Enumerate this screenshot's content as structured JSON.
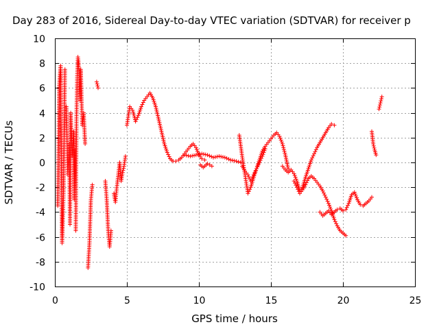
{
  "chart_data": {
    "type": "scatter",
    "title": "Day 283 of 2016, Sidereal Day-to-day VTEC variation (SDTVAR) for receiver p",
    "xlabel": "GPS time / hours",
    "ylabel": "SDTVAR / TECUs",
    "xlim": [
      0,
      25
    ],
    "ylim": [
      -10,
      10
    ],
    "xticks": [
      "0",
      "5",
      "10",
      "15",
      "20",
      "25"
    ],
    "yticks": [
      "-10",
      "-8",
      "-6",
      "-4",
      "-2",
      "0",
      "2",
      "4",
      "6",
      "8",
      "10"
    ],
    "grid": true,
    "marker": "+",
    "color": "#ff0000",
    "segments": [
      {
        "x": [
          0.2,
          0.3,
          0.4,
          0.5,
          0.6,
          0.7
        ],
        "y": [
          -3.5,
          6.2,
          7.8,
          -6.5,
          -2.5,
          7.5
        ]
      },
      {
        "x": [
          0.8,
          0.9,
          1.0,
          1.05,
          1.1,
          1.2,
          1.3,
          1.35,
          1.4
        ],
        "y": [
          4.5,
          -1.0,
          1.5,
          -5.0,
          4.0,
          0.5,
          2.5,
          -3.0,
          1.0
        ]
      },
      {
        "x": [
          1.45,
          1.5,
          1.55,
          1.6,
          1.65,
          1.7,
          1.75,
          1.8,
          1.9,
          2.0,
          2.1
        ],
        "y": [
          -5.5,
          3.5,
          7.0,
          8.5,
          8.0,
          6.0,
          5.0,
          7.5,
          3.0,
          4.0,
          1.5
        ]
      },
      {
        "x": [
          2.3,
          2.4,
          2.5,
          2.6
        ],
        "y": [
          -8.5,
          -6.5,
          -3.0,
          -1.8
        ]
      },
      {
        "x": [
          2.9,
          3.0
        ],
        "y": [
          6.5,
          6.0
        ]
      },
      {
        "x": [
          3.5,
          3.6,
          3.7,
          3.8,
          3.9
        ],
        "y": [
          -1.5,
          -3.0,
          -5.5,
          -6.8,
          -5.5
        ]
      },
      {
        "x": [
          4.1,
          4.2,
          4.3,
          4.4,
          4.5,
          4.6,
          4.7,
          4.8,
          4.9
        ],
        "y": [
          -2.5,
          -3.2,
          -2.0,
          -1.0,
          0.0,
          -1.5,
          -0.8,
          -0.3,
          0.5
        ]
      },
      {
        "x": [
          5.0,
          5.2,
          5.4,
          5.6,
          5.8,
          6.0,
          6.2,
          6.4,
          6.6,
          6.8,
          7.0,
          7.2,
          7.4,
          7.6,
          7.8,
          8.0,
          8.2,
          8.4,
          8.6,
          8.8,
          9.0,
          9.2,
          9.4,
          9.6,
          9.8,
          10.0,
          10.2,
          10.4
        ],
        "y": [
          3.0,
          4.5,
          4.2,
          3.3,
          3.8,
          4.5,
          5.0,
          5.3,
          5.6,
          5.2,
          4.5,
          3.5,
          2.5,
          1.5,
          0.8,
          0.3,
          0.1,
          0.1,
          0.2,
          0.4,
          0.7,
          1.0,
          1.3,
          1.5,
          1.2,
          0.6,
          0.3,
          0.2
        ]
      },
      {
        "x": [
          9.0,
          9.4,
          9.8,
          10.2,
          10.6,
          11.0,
          11.4,
          11.8,
          12.2,
          12.6,
          12.9
        ],
        "y": [
          0.6,
          0.5,
          0.6,
          0.7,
          0.6,
          0.4,
          0.5,
          0.4,
          0.2,
          0.1,
          0.0
        ]
      },
      {
        "x": [
          10.1,
          10.3,
          10.6,
          10.9
        ],
        "y": [
          -0.2,
          -0.4,
          -0.1,
          -0.3
        ]
      },
      {
        "x": [
          12.8,
          13.0,
          13.2,
          13.4,
          13.6,
          13.8,
          14.0,
          14.2,
          14.4,
          14.6,
          14.8,
          15.0,
          15.2,
          15.4,
          15.6,
          15.8,
          16.0,
          16.2
        ],
        "y": [
          2.2,
          0.5,
          -1.0,
          -2.5,
          -2.0,
          -1.2,
          -0.5,
          0.2,
          0.9,
          1.3,
          1.6,
          1.9,
          2.2,
          2.4,
          2.1,
          1.5,
          0.6,
          -0.5
        ]
      },
      {
        "x": [
          13.0,
          13.2,
          13.4,
          13.6,
          13.8,
          14.0,
          14.2,
          14.4,
          14.6
        ],
        "y": [
          -0.3,
          -0.7,
          -1.0,
          -1.5,
          -1.0,
          -0.5,
          0.0,
          0.5,
          1.1
        ]
      },
      {
        "x": [
          15.8,
          16.0,
          16.2,
          16.4,
          16.6,
          16.8,
          17.0,
          17.2,
          17.4,
          17.6,
          17.8,
          18.0,
          18.2,
          18.4,
          18.6,
          18.8,
          19.0,
          19.2,
          19.4
        ],
        "y": [
          -0.3,
          -0.6,
          -0.8,
          -0.6,
          -0.9,
          -1.5,
          -2.3,
          -2.0,
          -1.2,
          -0.5,
          0.2,
          0.7,
          1.2,
          1.6,
          2.0,
          2.4,
          2.8,
          3.1,
          3.0
        ]
      },
      {
        "x": [
          16.6,
          16.8,
          17.0,
          17.2,
          17.4,
          17.6,
          17.8,
          18.0,
          18.2,
          18.4,
          18.6,
          18.8,
          19.0,
          19.2,
          19.4,
          19.6,
          19.8,
          20.0,
          20.2
        ],
        "y": [
          -1.5,
          -2.0,
          -2.5,
          -2.2,
          -1.8,
          -1.3,
          -1.1,
          -1.3,
          -1.6,
          -1.9,
          -2.3,
          -2.8,
          -3.3,
          -3.9,
          -4.6,
          -5.1,
          -5.5,
          -5.7,
          -5.9
        ]
      },
      {
        "x": [
          18.4,
          18.6,
          18.8,
          19.0,
          19.2,
          19.4,
          19.6,
          19.8,
          20.0,
          20.2,
          20.4,
          20.6,
          20.8,
          21.0,
          21.2,
          21.4,
          21.6,
          21.8,
          22.0
        ],
        "y": [
          -4.0,
          -4.3,
          -4.1,
          -3.9,
          -4.2,
          -4.0,
          -3.8,
          -3.7,
          -3.9,
          -3.8,
          -3.3,
          -2.6,
          -2.4,
          -3.0,
          -3.4,
          -3.5,
          -3.3,
          -3.1,
          -2.8
        ]
      },
      {
        "x": [
          22.0,
          22.1,
          22.2,
          22.3
        ],
        "y": [
          2.5,
          1.5,
          1.0,
          0.6
        ]
      },
      {
        "x": [
          22.5,
          22.6,
          22.7
        ],
        "y": [
          4.3,
          4.8,
          5.3
        ]
      }
    ]
  }
}
